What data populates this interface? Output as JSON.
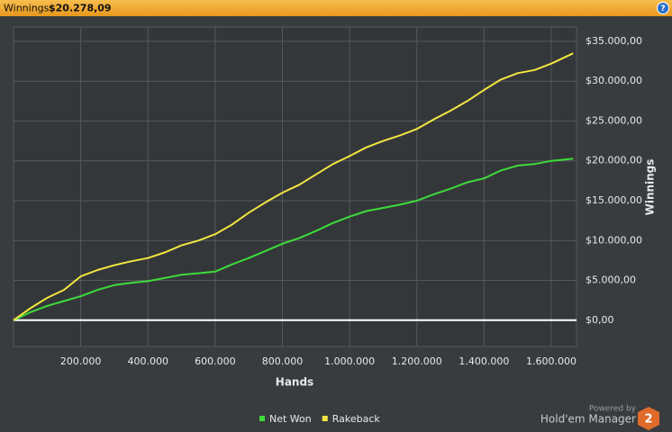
{
  "header": {
    "label": "Winnings:",
    "value": "$20.278,09",
    "help_icon": "?"
  },
  "chart_data": {
    "type": "line",
    "x_label": "Hands",
    "y_label": "Winnings",
    "x": [
      0,
      50000,
      100000,
      150000,
      200000,
      250000,
      300000,
      350000,
      400000,
      450000,
      500000,
      550000,
      600000,
      650000,
      700000,
      750000,
      800000,
      850000,
      900000,
      950000,
      1000000,
      1050000,
      1100000,
      1150000,
      1200000,
      1250000,
      1300000,
      1350000,
      1400000,
      1450000,
      1500000,
      1550000,
      1600000,
      1665000
    ],
    "series": [
      {
        "name": "Net Won",
        "color": "#3ddc3a",
        "values": [
          0,
          1000,
          1800,
          2400,
          3000,
          3800,
          4400,
          4700,
          4900,
          5300,
          5700,
          5900,
          6100,
          7000,
          7800,
          8700,
          9600,
          10300,
          11200,
          12200,
          13000,
          13700,
          14100,
          14500,
          15000,
          15800,
          16500,
          17300,
          17800,
          18800,
          19400,
          19600,
          20000,
          20278.09
        ]
      },
      {
        "name": "Rakeback",
        "color": "#f2e640",
        "values": [
          0,
          1500,
          2800,
          3800,
          5500,
          6300,
          6900,
          7400,
          7800,
          8500,
          9400,
          10000,
          10800,
          12000,
          13500,
          14800,
          16000,
          17000,
          18300,
          19600,
          20600,
          21700,
          22500,
          23200,
          24000,
          25200,
          26300,
          27500,
          28900,
          30200,
          31000,
          31400,
          32200,
          33500
        ]
      }
    ],
    "xlim": [
      0,
      1675000
    ],
    "ylim": [
      -3300,
      36800
    ],
    "xticks": [
      {
        "value": 200000,
        "label": "200.000"
      },
      {
        "value": 400000,
        "label": "400.000"
      },
      {
        "value": 600000,
        "label": "600.000"
      },
      {
        "value": 800000,
        "label": "800.000"
      },
      {
        "value": 1000000,
        "label": "1.000.000"
      },
      {
        "value": 1200000,
        "label": "1.200.000"
      },
      {
        "value": 1400000,
        "label": "1.400.000"
      },
      {
        "value": 1600000,
        "label": "1.600.000"
      }
    ],
    "yticks": [
      {
        "value": 0,
        "label": "$0,00"
      },
      {
        "value": 5000,
        "label": "$5.000,00"
      },
      {
        "value": 10000,
        "label": "$10.000,00"
      },
      {
        "value": 15000,
        "label": "$15.000,00"
      },
      {
        "value": 20000,
        "label": "$20.000,00"
      },
      {
        "value": 25000,
        "label": "$25.000,00"
      },
      {
        "value": 30000,
        "label": "$30.000,00"
      },
      {
        "value": 35000,
        "label": "$35.000,00"
      }
    ],
    "grid": true,
    "legend": "bottom"
  },
  "branding": {
    "powered": "Powered by",
    "product": "Hold'em Manager",
    "logo": "2"
  }
}
